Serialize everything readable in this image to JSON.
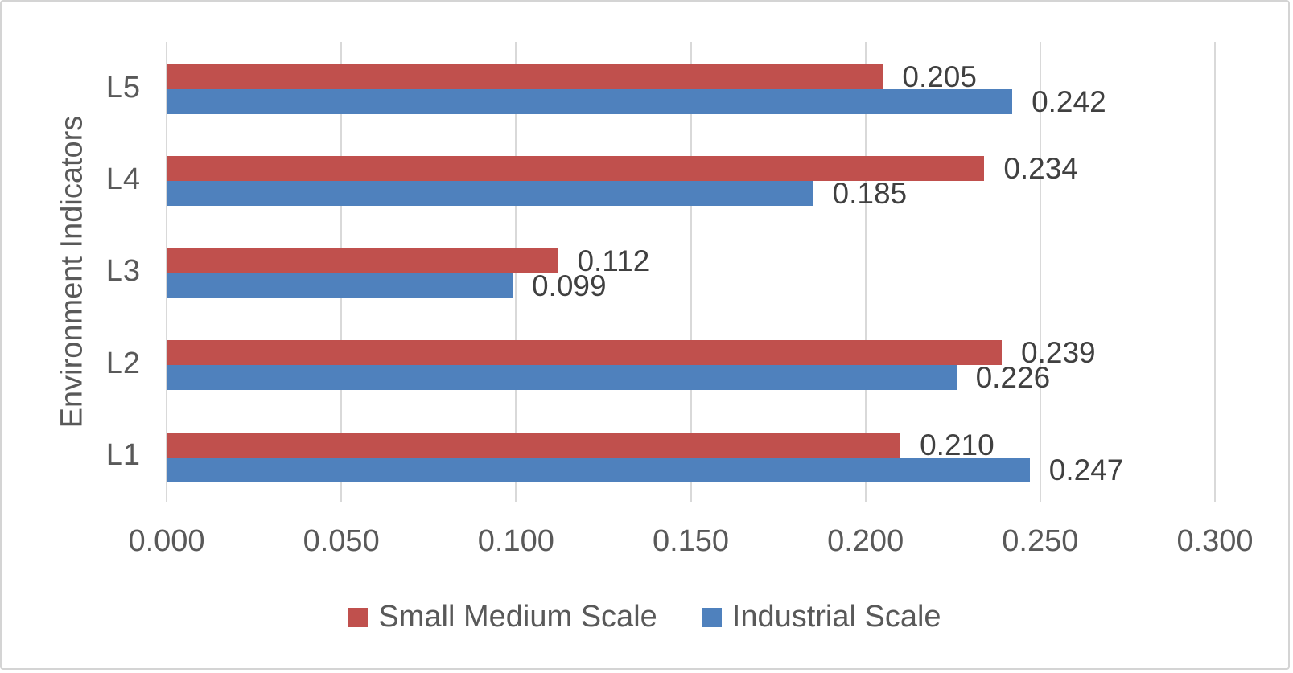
{
  "chart_data": {
    "type": "bar",
    "orientation": "horizontal",
    "title": "",
    "xlabel": "",
    "ylabel": "Environment Indicators",
    "categories": [
      "L5",
      "L4",
      "L3",
      "L2",
      "L1"
    ],
    "series": [
      {
        "name": "Small Medium Scale",
        "color": "#C0504D",
        "values": [
          0.205,
          0.234,
          0.112,
          0.239,
          0.21
        ],
        "labels": [
          "0.205",
          "0.234",
          "0.112",
          "0.239",
          "0.210"
        ]
      },
      {
        "name": "Industrial Scale",
        "color": "#4F81BD",
        "values": [
          0.242,
          0.185,
          0.099,
          0.226,
          0.247
        ],
        "labels": [
          "0.242",
          "0.185",
          "0.099",
          "0.226",
          "0.247"
        ]
      }
    ],
    "xlim": [
      0.0,
      0.3
    ],
    "x_ticks": [
      "0.000",
      "0.050",
      "0.100",
      "0.150",
      "0.200",
      "0.250",
      "0.300"
    ],
    "grid": true,
    "legend_position": "bottom",
    "bar_label_position": "outside-end"
  },
  "colors": {
    "background": "#FFFFFF",
    "frame_border": "#D4D4D4",
    "gridline": "#D9D9D9",
    "axis_text": "#595959",
    "data_label_text": "#404040"
  }
}
